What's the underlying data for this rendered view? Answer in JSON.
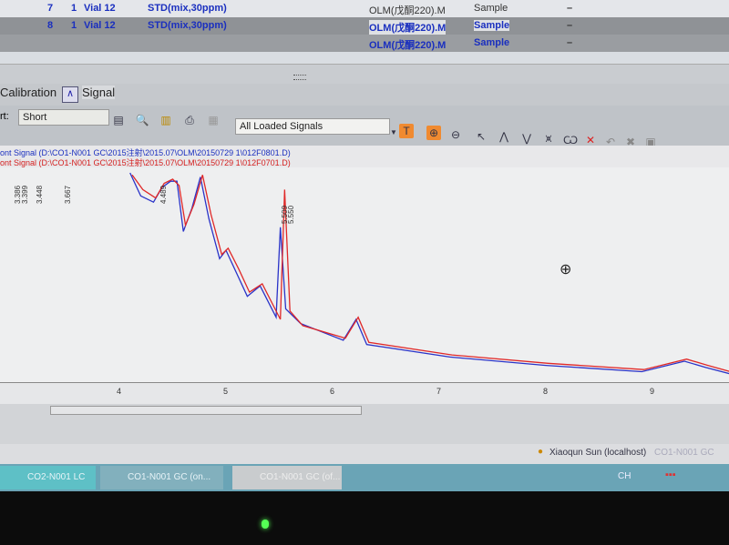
{
  "table": {
    "rows": [
      {
        "num": "7",
        "inj": "1",
        "vial": "Vial 12",
        "name": "STD(mix,30ppm)",
        "method": "OLM(戊酮220).M",
        "type": "Sample",
        "amt": "–"
      },
      {
        "num": "8",
        "inj": "1",
        "vial": "Vial 12",
        "name": "STD(mix,30ppm)",
        "method": "OLM(戊酮220).M",
        "type": "Sample",
        "amt": "–"
      },
      {
        "num": "",
        "inj": "",
        "vial": "",
        "name": "",
        "method": "OLM(戊酮220).M",
        "type": "Sample",
        "amt": "–"
      }
    ]
  },
  "tabs": [
    {
      "label": "Calibration"
    },
    {
      "label": "Signal"
    }
  ],
  "toolbar": {
    "report_label": "rt:",
    "report_value": "Short",
    "signals_select": "All Loaded Signals"
  },
  "legend": {
    "blue": "ont Signal (D:\\CO1-N001 GC\\2015注射\\2015.07\\OLM\\20150729 1\\012F0801.D)",
    "red": "ont Signal (D:\\CO1-N001 GC\\2015注射\\2015.07\\OLM\\20150729 1\\012F0701.D)"
  },
  "peak_labels": [
    "3.386",
    "3.399",
    "3.448",
    "3.667",
    "4.489",
    "5.509",
    "5.550"
  ],
  "chart_data": {
    "type": "line",
    "xlabel": "",
    "ylabel": "",
    "x_ticks": [
      "4",
      "5",
      "6",
      "7",
      "8",
      "9"
    ],
    "xlim": [
      3.0,
      9.8
    ],
    "grid": false,
    "series": [
      {
        "color": "#2a33c8",
        "x": [
          4.1,
          4.2,
          4.32,
          4.4,
          4.48,
          4.54,
          4.6,
          4.68,
          4.76,
          4.84,
          4.94,
          5.0,
          5.1,
          5.2,
          5.32,
          5.47,
          5.51,
          5.56,
          5.7,
          6.1,
          6.22,
          6.32,
          7.1,
          8.0,
          8.9,
          9.3,
          9.5,
          9.8
        ],
        "y": [
          100,
          89,
          86,
          93,
          96,
          96,
          72,
          83,
          98,
          78,
          59,
          63,
          52,
          41,
          46,
          31,
          74,
          35,
          28,
          20,
          30,
          18,
          12,
          8,
          5,
          10,
          7,
          3
        ]
      },
      {
        "color": "#e02828",
        "x": [
          4.12,
          4.22,
          4.34,
          4.42,
          4.5,
          4.56,
          4.62,
          4.7,
          4.78,
          4.86,
          4.96,
          5.02,
          5.12,
          5.22,
          5.34,
          5.51,
          5.55,
          5.6,
          5.72,
          6.12,
          6.24,
          6.34,
          7.12,
          8.02,
          8.92,
          9.32,
          9.52,
          9.8
        ],
        "y": [
          99,
          92,
          88,
          95,
          97,
          94,
          75,
          85,
          99,
          80,
          61,
          64,
          54,
          43,
          47,
          30,
          92,
          34,
          27,
          21,
          31,
          19,
          13,
          9,
          6,
          11,
          8,
          4
        ]
      }
    ]
  },
  "status": {
    "user": "Xiaoqun Sun (localhost)",
    "instrument": "CO1-N001 GC"
  },
  "taskbar": {
    "items": [
      "CO2-N001 LC (off...",
      "CO1-N001 GC (on...",
      "CO1-N001 GC (of..."
    ],
    "lang": "CH"
  },
  "colors": {
    "blue_trace": "#2a33c8",
    "red_trace": "#e02828",
    "taskbar": "#6aa4b6"
  }
}
